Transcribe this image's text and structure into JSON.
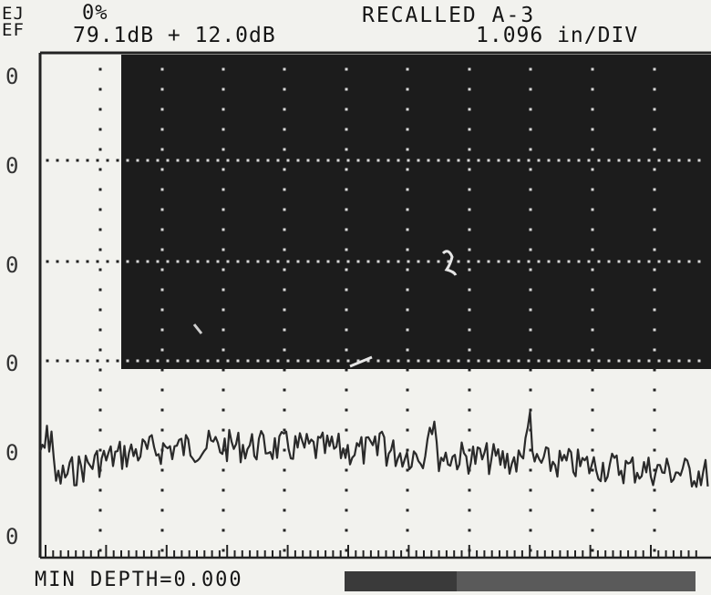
{
  "header": {
    "label_1": "EJ",
    "label_2": "EF",
    "percent": "0%",
    "gain": "79.1dB + 12.0dB",
    "mode": "RECALLED  A-3",
    "scale": "1.096 in/DIV"
  },
  "left_scale": {
    "values": [
      "0",
      "0",
      "0",
      "0",
      "0",
      "0"
    ]
  },
  "footer": {
    "depth": "MIN DEPTH=0.000",
    "status_text": "",
    "status_level": 0.32
  },
  "display": {
    "screen_color": "#f2f2ee",
    "inverted_color": "#1c1c1c",
    "trace_color": "#2a2a2a",
    "grid_color": "#d8d8d8",
    "divisions_x": 10,
    "divisions_y": 5
  }
}
